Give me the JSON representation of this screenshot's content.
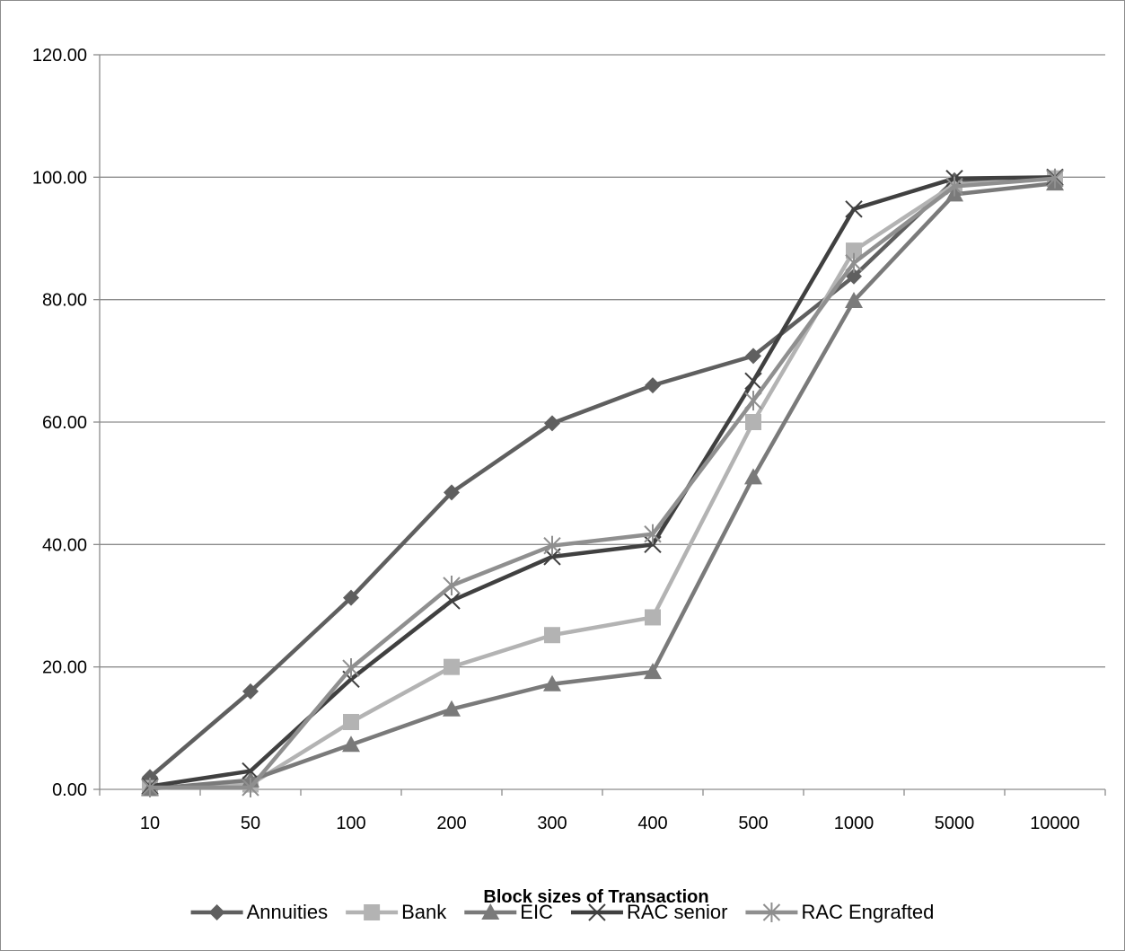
{
  "chart_data": {
    "type": "line",
    "title": "",
    "xlabel": "Block sizes of Transaction",
    "ylabel": "",
    "categories": [
      "10",
      "50",
      "100",
      "200",
      "300",
      "400",
      "500",
      "1000",
      "5000",
      "10000"
    ],
    "ylim": [
      0,
      120
    ],
    "yticks": [
      0,
      20,
      40,
      60,
      80,
      100,
      120
    ],
    "ytick_labels": [
      "0.00",
      "20.00",
      "40.00",
      "60.00",
      "80.00",
      "100.00",
      "120.00"
    ],
    "grid": "horizontal",
    "legend_position": "bottom",
    "series": [
      {
        "name": "Annuities",
        "color": "#5f5f5f",
        "marker": "diamond",
        "values": [
          2.0,
          16.0,
          31.3,
          48.5,
          59.8,
          66.0,
          70.8,
          83.8,
          99.5,
          100.0
        ]
      },
      {
        "name": "Bank",
        "color": "#b3b3b3",
        "marker": "square",
        "values": [
          0.2,
          0.8,
          11.0,
          20.0,
          25.2,
          28.1,
          60.0,
          88.0,
          98.8,
          99.8
        ]
      },
      {
        "name": "EIC",
        "color": "#7a7a7a",
        "marker": "triangle",
        "values": [
          0.1,
          1.5,
          7.3,
          13.1,
          17.2,
          19.2,
          51.0,
          79.8,
          97.2,
          99.0
        ]
      },
      {
        "name": "RAC senior",
        "color": "#404040",
        "marker": "x",
        "values": [
          0.5,
          3.0,
          18.0,
          30.8,
          38.0,
          40.0,
          66.7,
          94.8,
          99.8,
          100.0
        ]
      },
      {
        "name": "RAC Engrafted",
        "color": "#8f8f8f",
        "marker": "asterisk",
        "values": [
          0.3,
          0.3,
          19.8,
          33.3,
          39.8,
          41.7,
          63.5,
          86.0,
          98.5,
          99.8
        ]
      }
    ]
  }
}
